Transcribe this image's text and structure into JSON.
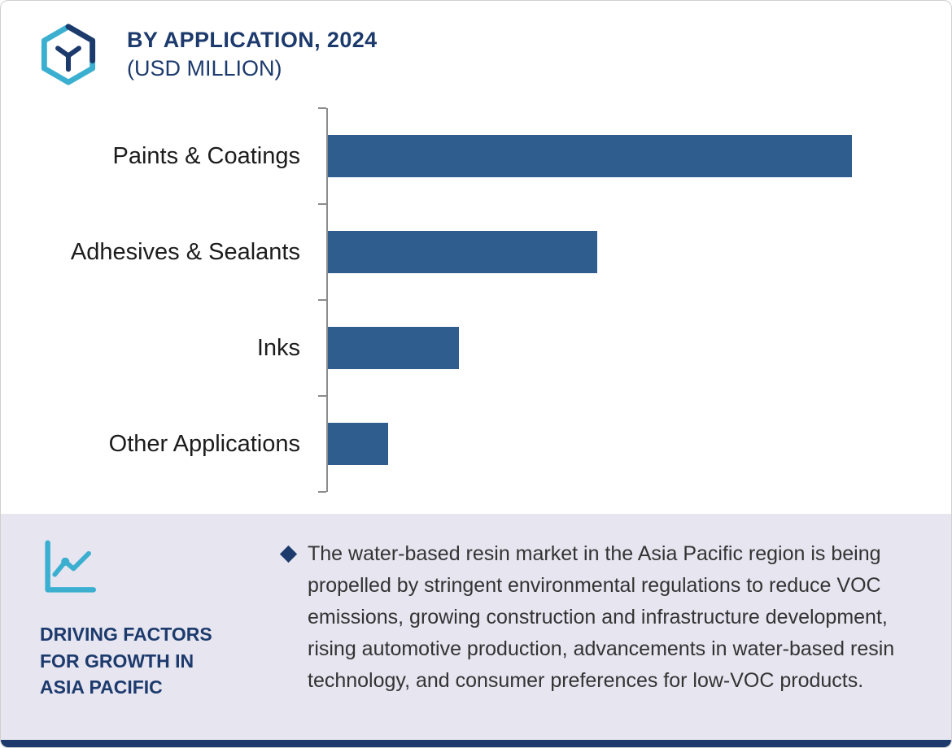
{
  "header": {
    "title": "BY APPLICATION, 2024",
    "subtitle": "(USD MILLION)"
  },
  "chart_data": {
    "type": "bar",
    "orientation": "horizontal",
    "title": "BY APPLICATION, 2024 (USD MILLION)",
    "categories": [
      "Paints & Coatings",
      "Adhesives & Sealants",
      "Inks",
      "Other Applications"
    ],
    "values": [
      100,
      51.5,
      25,
      11.5
    ],
    "xlabel": "",
    "ylabel": "",
    "xlim": [
      0,
      110
    ],
    "grid": false,
    "legend": "none",
    "bar_color": "#2F5D8E",
    "axis_color": "#8C8C8C",
    "value_labels_visible": false
  },
  "footer": {
    "heading": "DRIVING FACTORS FOR GROWTH IN ASIA PACIFIC",
    "text": "The water-based resin market in the Asia Pacific region is being propelled by stringent environmental regulations to reduce VOC emissions, growing construction and infrastructure development, rising automotive production, advancements in water-based resin technology, and consumer preferences for low-VOC products."
  },
  "icons": {
    "logo": "hexagon-logo-icon",
    "footer_icon": "line-chart-icon",
    "bullet": "diamond-bullet-icon"
  },
  "colors": {
    "navy": "#1D3A6D",
    "bar_blue": "#2F5D8E",
    "teal": "#3BAFD0",
    "footer_bg": "#E6E5F0",
    "axis_gray": "#8C8C8C",
    "text_dark": "#333333"
  }
}
